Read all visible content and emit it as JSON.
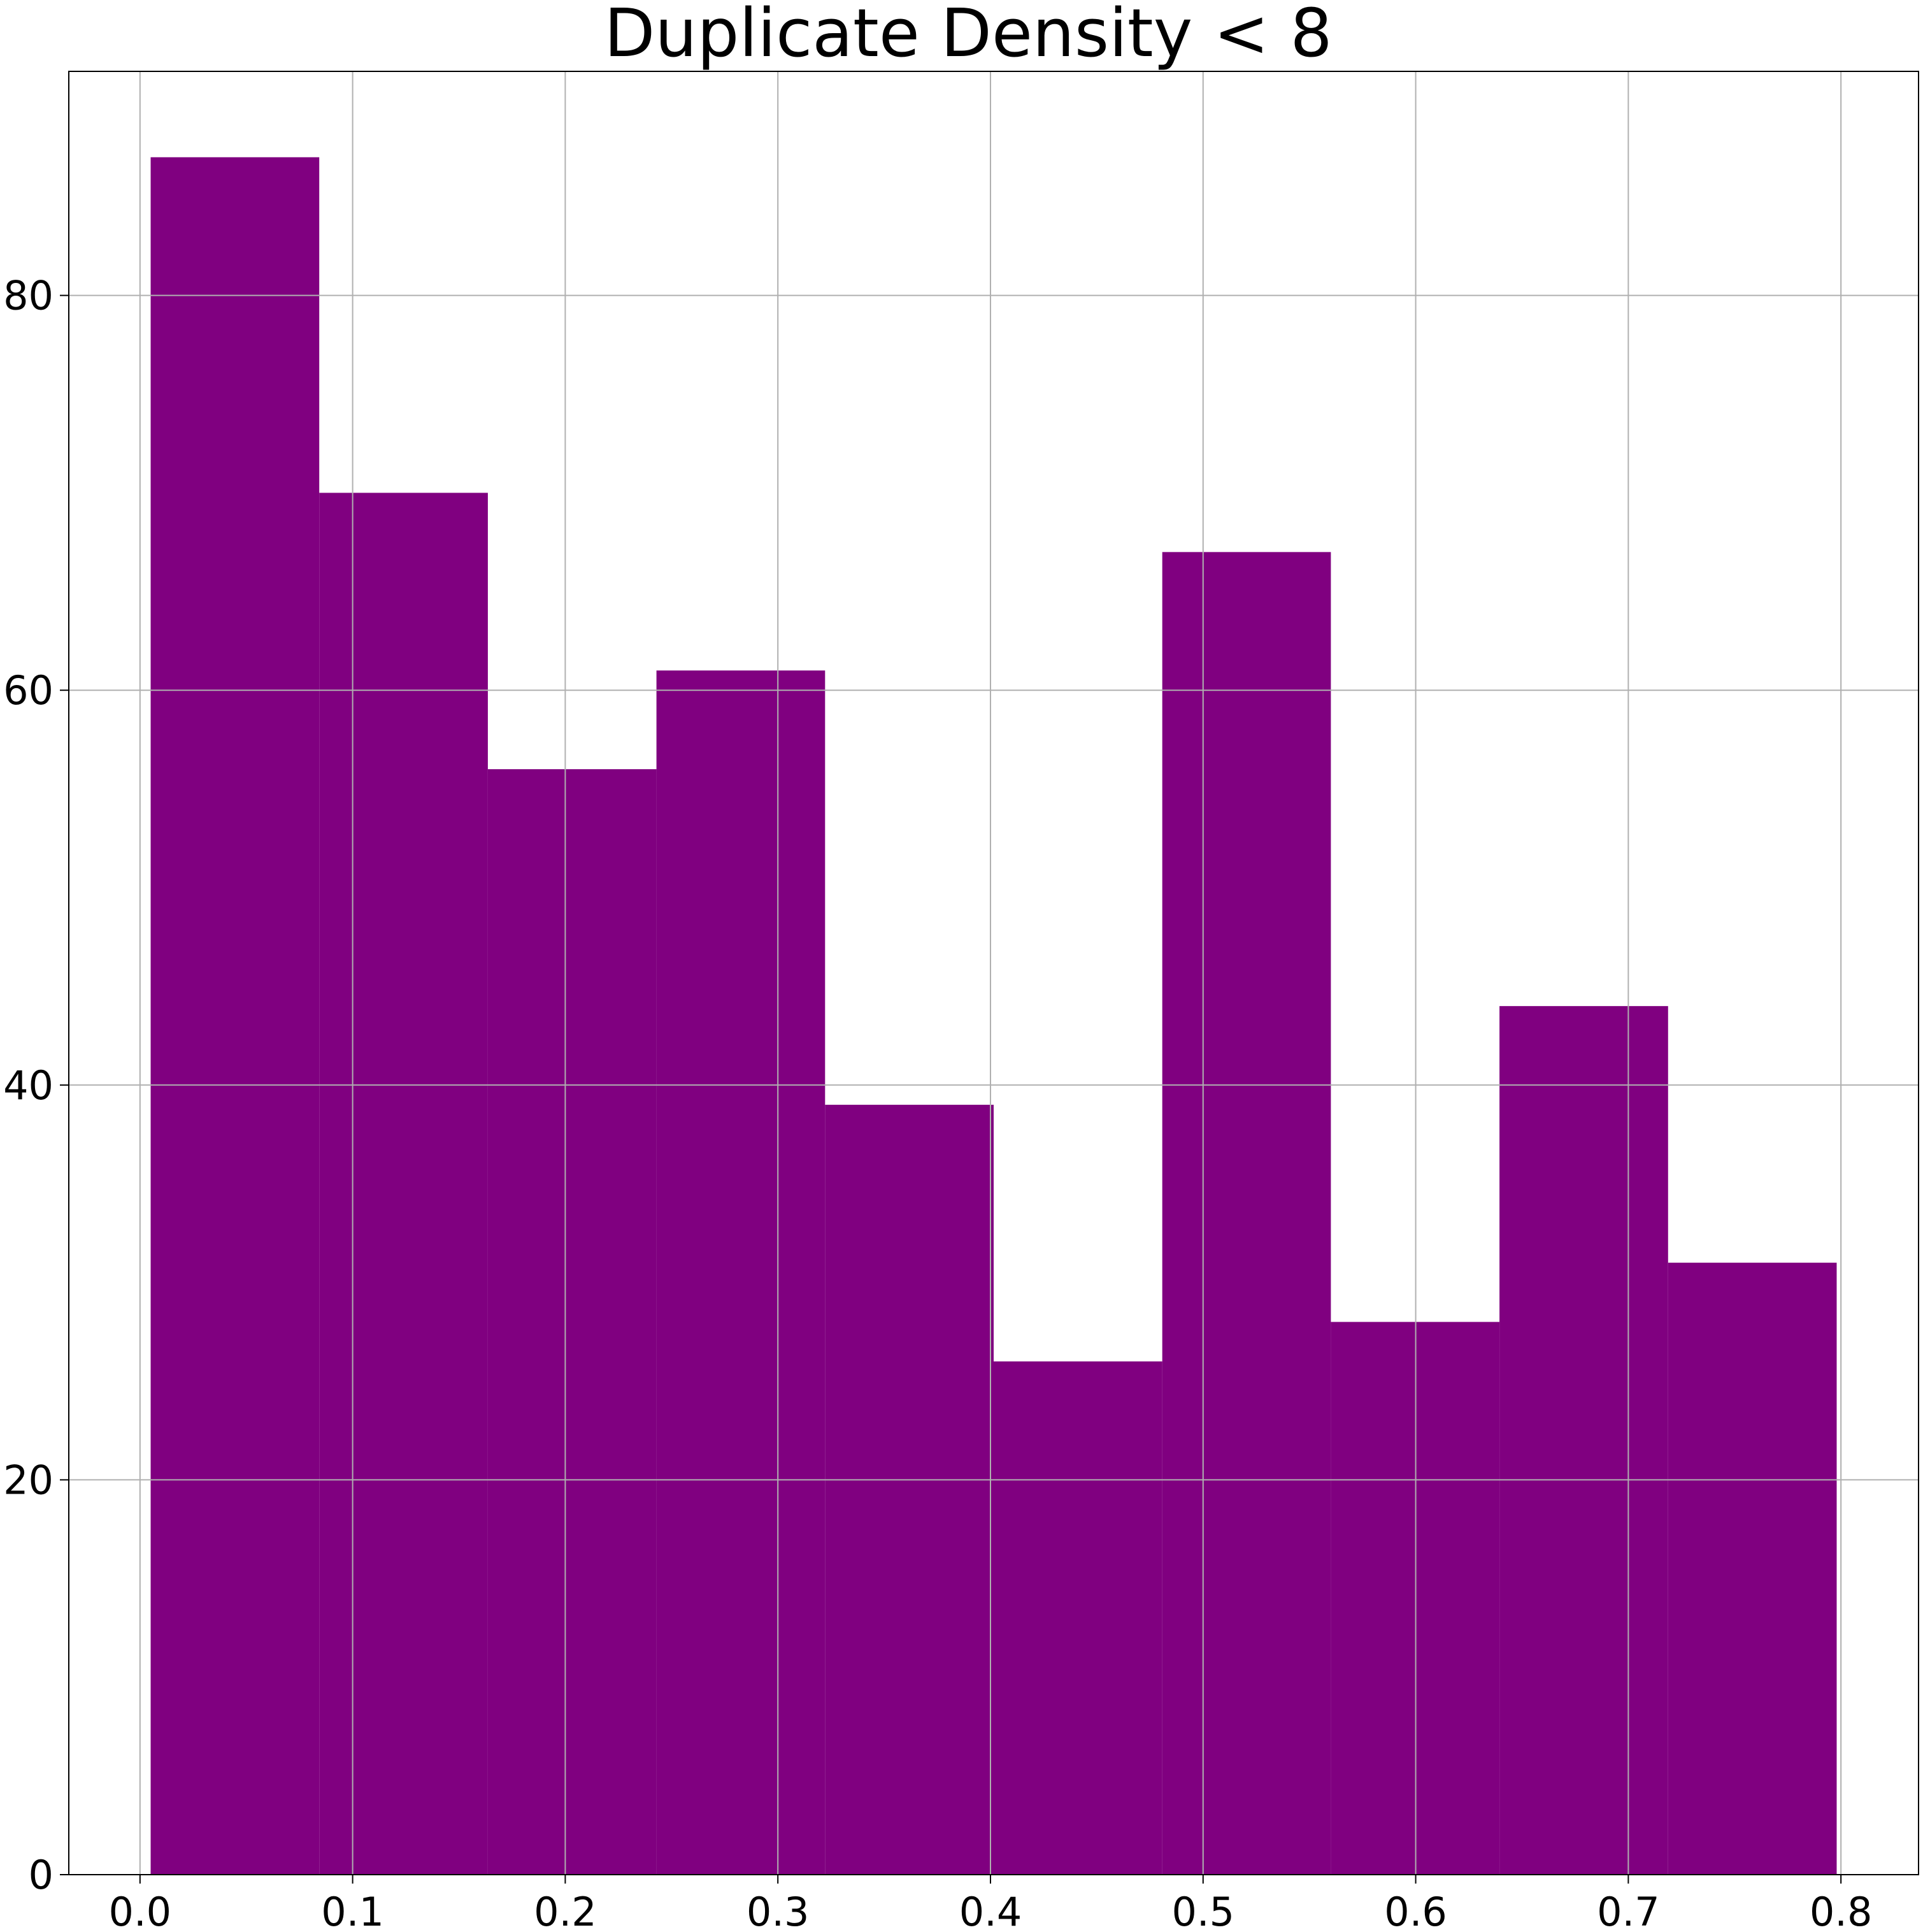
{
  "chart_data": {
    "type": "bar",
    "title": "Duplicate Density < 8",
    "xlabel": "",
    "ylabel": "",
    "bin_edges": [
      0.005,
      0.0843,
      0.1636,
      0.2429,
      0.3222,
      0.4015,
      0.4808,
      0.5601,
      0.6394,
      0.7187,
      0.798
    ],
    "values": [
      87,
      70,
      56,
      61,
      39,
      26,
      67,
      28,
      44,
      31
    ],
    "xlim": [
      -0.0335,
      0.8365
    ],
    "ylim": [
      0,
      91.35
    ],
    "xticks": [
      0.0,
      0.1,
      0.2,
      0.3,
      0.4,
      0.5,
      0.6,
      0.7,
      0.8
    ],
    "xtick_labels": [
      "0.0",
      "0.1",
      "0.2",
      "0.3",
      "0.4",
      "0.5",
      "0.6",
      "0.7",
      "0.8"
    ],
    "yticks": [
      0,
      20,
      40,
      60,
      80
    ],
    "ytick_labels": [
      "0",
      "20",
      "40",
      "60",
      "80"
    ],
    "grid": true,
    "legend": "none",
    "colors": {
      "bar": "#800080",
      "grid": "#b0b0b0",
      "axis": "#000000"
    }
  }
}
